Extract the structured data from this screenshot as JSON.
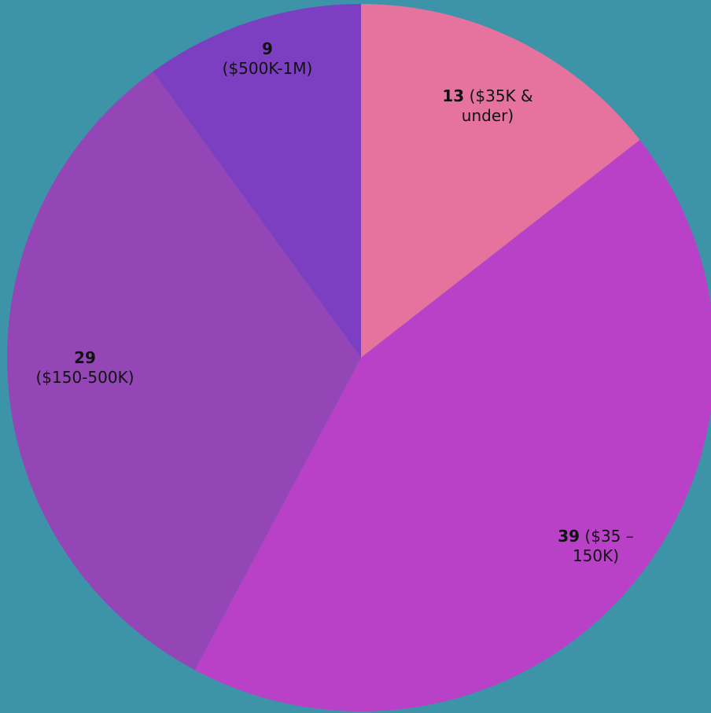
{
  "chart_data": {
    "type": "pie",
    "categories": [
      "($35K & under)",
      "($35 – 150K)",
      "($150-500K)",
      "($500K-1M)"
    ],
    "values": [
      13,
      39,
      29,
      9
    ],
    "colors": [
      "#e6729e",
      "#b841c7",
      "#9446b6",
      "#7d3fc1"
    ]
  }
}
